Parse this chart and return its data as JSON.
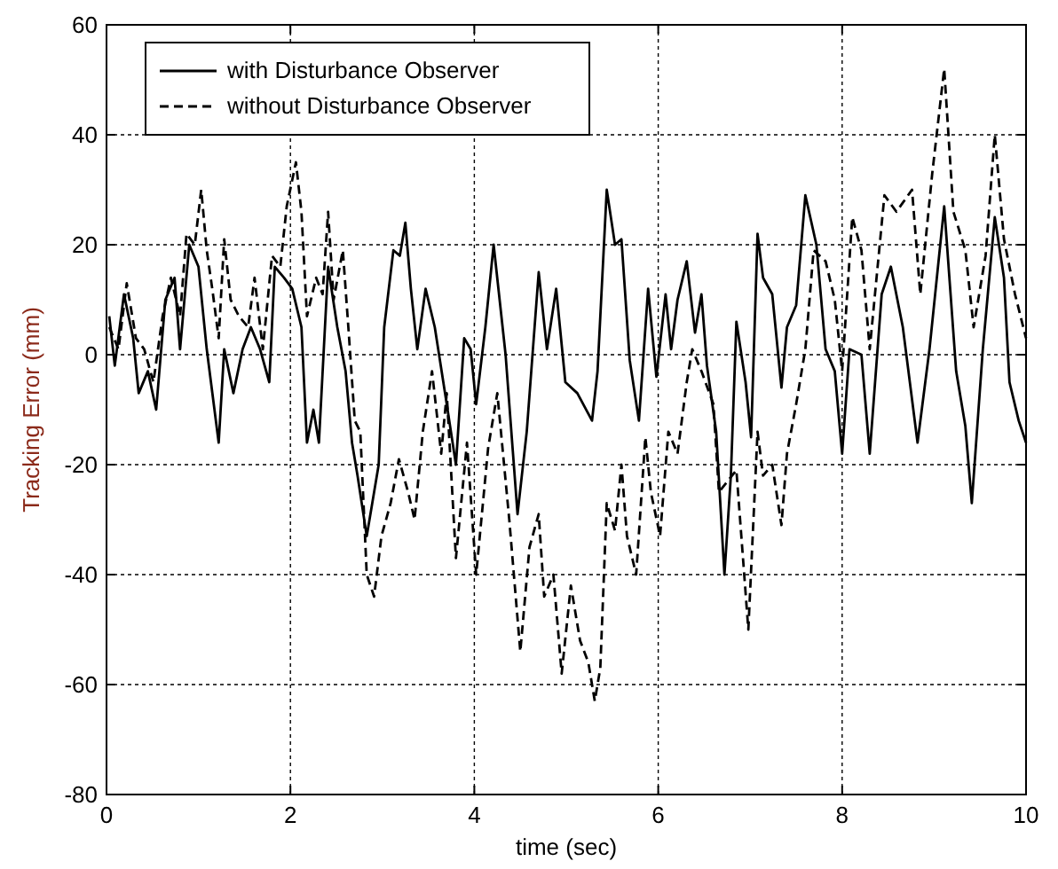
{
  "chart_data": {
    "type": "line",
    "xlabel": "time (sec)",
    "ylabel": "Tracking Error (mm)",
    "xlim": [
      0,
      10
    ],
    "ylim": [
      -80,
      60
    ],
    "xticks": [
      0,
      2,
      4,
      6,
      8,
      10
    ],
    "yticks": [
      -80,
      -60,
      -40,
      -20,
      0,
      20,
      40,
      60
    ],
    "grid": true,
    "legend": "top left",
    "series": [
      {
        "name": "with Disturbance Observer",
        "color": "#000000",
        "line_style": "solid",
        "x": [
          0.03,
          0.09,
          0.19,
          0.29,
          0.35,
          0.45,
          0.54,
          0.64,
          0.74,
          0.8,
          0.9,
          1.0,
          1.09,
          1.22,
          1.28,
          1.38,
          1.48,
          1.57,
          1.67,
          1.77,
          1.83,
          1.93,
          2.02,
          2.12,
          2.18,
          2.25,
          2.31,
          2.41,
          2.51,
          2.6,
          2.67,
          2.73,
          2.83,
          2.89,
          2.96,
          3.02,
          3.12,
          3.19,
          3.25,
          3.31,
          3.38,
          3.47,
          3.57,
          3.7,
          3.8,
          3.89,
          3.96,
          4.02,
          4.12,
          4.21,
          4.34,
          4.47,
          4.57,
          4.7,
          4.79,
          4.89,
          4.99,
          5.12,
          5.28,
          5.34,
          5.44,
          5.53,
          5.6,
          5.69,
          5.79,
          5.89,
          5.98,
          6.08,
          6.14,
          6.21,
          6.31,
          6.4,
          6.47,
          6.53,
          6.63,
          6.72,
          6.79,
          6.85,
          6.95,
          7.01,
          7.08,
          7.14,
          7.24,
          7.34,
          7.4,
          7.5,
          7.6,
          7.72,
          7.82,
          7.92,
          8.0,
          8.08,
          8.21,
          8.3,
          8.43,
          8.53,
          8.66,
          8.82,
          8.95,
          9.11,
          9.24,
          9.34,
          9.41,
          9.53,
          9.66,
          9.76,
          9.82,
          9.92,
          10.0
        ],
        "values": [
          7,
          -2,
          11,
          3,
          -7,
          -3,
          -10,
          10,
          14,
          1,
          20,
          16,
          1,
          -16,
          1,
          -7,
          1,
          5,
          1,
          -5,
          16,
          14,
          12,
          5,
          -16,
          -10,
          -16,
          16,
          5,
          -3,
          -16,
          -22,
          -33,
          -27,
          -20,
          5,
          19,
          18,
          24,
          12,
          1,
          12,
          5,
          -9,
          -20,
          3,
          1,
          -9,
          5,
          20,
          0,
          -29,
          -14,
          15,
          1,
          12,
          -5,
          -7,
          -12,
          -3,
          30,
          20,
          21,
          -1,
          -12,
          12,
          -4,
          11,
          1,
          10,
          17,
          4,
          11,
          -2,
          -14,
          -40,
          -22,
          6,
          -5,
          -15,
          22,
          14,
          11,
          -6,
          5,
          9,
          29,
          20,
          1,
          -3,
          -18,
          1,
          0,
          -18,
          11,
          16,
          5,
          -16,
          1,
          27,
          -3,
          -13,
          -27,
          1,
          25,
          14,
          -5,
          -12,
          -16
        ]
      },
      {
        "name": "without Disturbance Observer",
        "color": "#000000",
        "line_style": "dashed",
        "x": [
          0.03,
          0.13,
          0.22,
          0.32,
          0.41,
          0.51,
          0.61,
          0.7,
          0.8,
          0.87,
          0.96,
          1.03,
          1.09,
          1.15,
          1.22,
          1.28,
          1.35,
          1.44,
          1.54,
          1.61,
          1.7,
          1.8,
          1.89,
          1.96,
          2.06,
          2.12,
          2.18,
          2.28,
          2.35,
          2.41,
          2.47,
          2.57,
          2.63,
          2.7,
          2.76,
          2.83,
          2.91,
          2.99,
          3.09,
          3.18,
          3.28,
          3.35,
          3.44,
          3.54,
          3.64,
          3.7,
          3.8,
          3.92,
          4.02,
          4.15,
          4.25,
          4.38,
          4.5,
          4.6,
          4.7,
          4.76,
          4.86,
          4.95,
          5.05,
          5.15,
          5.24,
          5.31,
          5.37,
          5.44,
          5.53,
          5.6,
          5.66,
          5.76,
          5.86,
          5.92,
          6.02,
          6.11,
          6.21,
          6.31,
          6.37,
          6.47,
          6.6,
          6.66,
          6.85,
          6.98,
          7.08,
          7.14,
          7.24,
          7.34,
          7.4,
          7.5,
          7.6,
          7.69,
          7.82,
          7.92,
          8.0,
          8.11,
          8.21,
          8.3,
          8.46,
          8.59,
          8.76,
          8.85,
          8.98,
          9.11,
          9.21,
          9.34,
          9.43,
          9.56,
          9.66,
          9.76,
          9.88,
          10.0
        ],
        "values": [
          5,
          1,
          13,
          3,
          1,
          -5,
          7,
          14,
          7,
          22,
          20,
          30,
          19,
          12,
          3,
          21,
          10,
          7,
          5,
          14,
          1,
          18,
          16,
          27,
          35,
          26,
          7,
          14,
          11,
          26,
          10,
          19,
          5,
          -12,
          -14,
          -40,
          -44,
          -33,
          -27,
          -19,
          -25,
          -30,
          -14,
          -3,
          -18,
          -7,
          -37,
          -16,
          -40,
          -17,
          -7,
          -30,
          -54,
          -35,
          -29,
          -44,
          -40,
          -58,
          -42,
          -52,
          -56,
          -63,
          -57,
          -27,
          -32,
          -20,
          -33,
          -40,
          -15,
          -25,
          -33,
          -14,
          -18,
          -5,
          1,
          -3,
          -9,
          -25,
          -21,
          -50,
          -14,
          -22,
          -20,
          -31,
          -18,
          -9,
          1,
          19,
          17,
          10,
          -3,
          25,
          19,
          1,
          29,
          26,
          30,
          11,
          33,
          52,
          26,
          19,
          5,
          18,
          40,
          21,
          11,
          3
        ]
      }
    ]
  }
}
